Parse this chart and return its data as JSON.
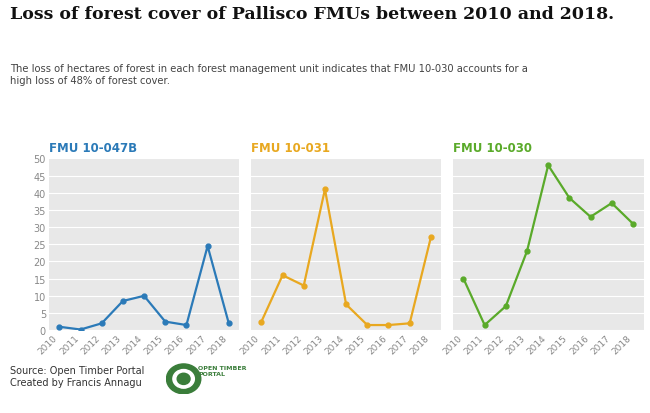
{
  "title": "Loss of forest cover of Pallisco FMUs between 2010 and 2018.",
  "subtitle": "The loss of hectares of forest in each forest management unit indicates that FMU 10-030 accounts for a\nhigh loss of 48% of forest cover.",
  "figure_bg": "#ffffff",
  "fmu1": {
    "label": "FMU 10-047B",
    "color": "#2b7ab8",
    "years": [
      2010,
      2011,
      2012,
      2013,
      2014,
      2015,
      2016,
      2017,
      2018
    ],
    "values": [
      1.0,
      0.2,
      2.0,
      8.5,
      10.0,
      2.5,
      1.5,
      24.5,
      2.0
    ]
  },
  "fmu2": {
    "label": "FMU 10-031",
    "color": "#e8a820",
    "years": [
      2010,
      2011,
      2012,
      2013,
      2014,
      2015,
      2016,
      2017,
      2018
    ],
    "values": [
      2.5,
      16.0,
      13.0,
      41.0,
      7.5,
      1.5,
      1.5,
      2.0,
      27.0
    ]
  },
  "fmu3": {
    "label": "FMU 10-030",
    "color": "#5aaa2a",
    "years": [
      2010,
      2011,
      2012,
      2013,
      2014,
      2015,
      2016,
      2017,
      2018
    ],
    "values": [
      15.0,
      1.5,
      7.0,
      23.0,
      48.0,
      38.5,
      33.0,
      37.0,
      31.0
    ]
  },
  "ylim": [
    0,
    50
  ],
  "yticks": [
    0,
    5,
    10,
    15,
    20,
    25,
    30,
    35,
    40,
    45,
    50
  ],
  "source_text": "Source: Open Timber Portal\nCreated by Francis Annagu",
  "label_color1": "#2b7ab8",
  "label_color2": "#e8a820",
  "label_color3": "#5aaa2a",
  "panel_bg": "#e8e8e8",
  "grid_color": "#ffffff",
  "tick_color": "#888888",
  "title_color": "#111111",
  "subtitle_color": "#444444"
}
